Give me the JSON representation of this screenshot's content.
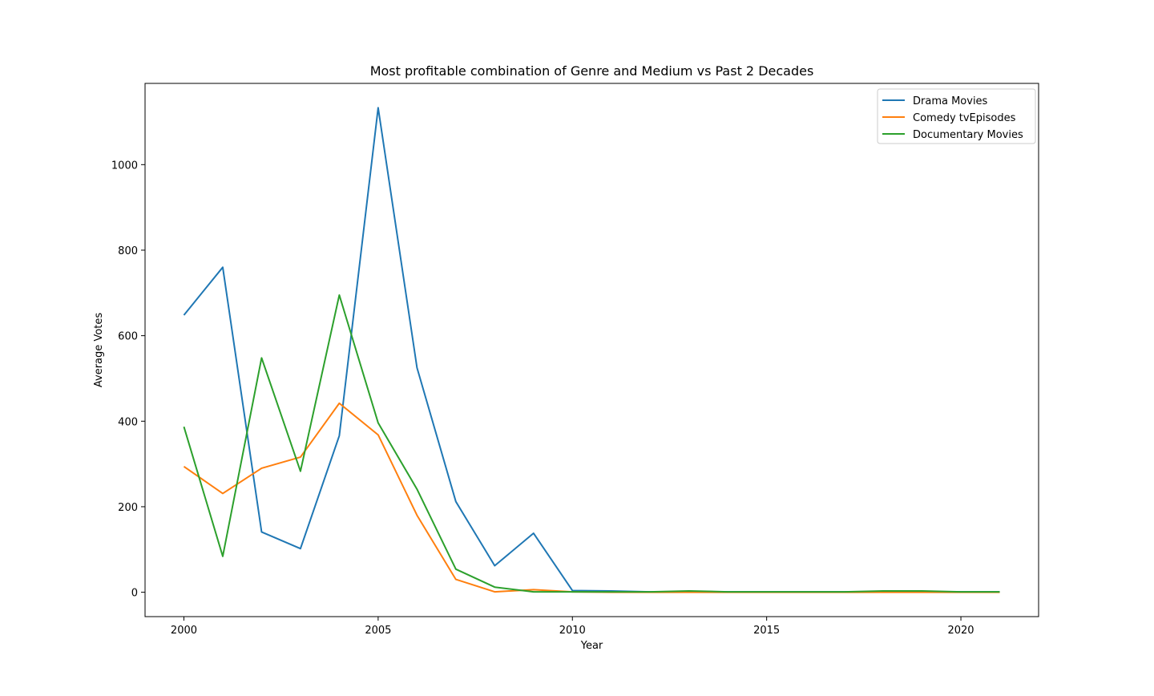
{
  "chart_data": {
    "type": "line",
    "title": "Most profitable combination of Genre and Medium vs Past 2 Decades",
    "xlabel": "Year",
    "ylabel": "Average Votes",
    "xlim": [
      1999,
      2022
    ],
    "ylim": [
      -57,
      1190
    ],
    "xticks": [
      2000,
      2005,
      2010,
      2015,
      2020
    ],
    "yticks": [
      0,
      200,
      400,
      600,
      800,
      1000
    ],
    "grid": false,
    "legend_position": "top-right",
    "x": [
      2000,
      2001,
      2002,
      2003,
      2004,
      2005,
      2006,
      2007,
      2008,
      2009,
      2010,
      2011,
      2012,
      2013,
      2014,
      2015,
      2016,
      2017,
      2018,
      2019,
      2020,
      2021
    ],
    "series": [
      {
        "name": "Drama Movies",
        "color": "#1f77b4",
        "values": [
          648,
          760,
          141,
          102,
          366,
          1133,
          525,
          212,
          62,
          138,
          4,
          3,
          1,
          1,
          1,
          1,
          1,
          1,
          1,
          1,
          1,
          1
        ]
      },
      {
        "name": "Comedy tvEpisodes",
        "color": "#ff7f0e",
        "values": [
          294,
          231,
          290,
          316,
          442,
          368,
          180,
          30,
          1,
          6,
          1,
          0,
          0,
          0,
          0,
          0,
          0,
          0,
          0,
          0,
          0,
          0
        ]
      },
      {
        "name": "Documentary Movies",
        "color": "#2ca02c",
        "values": [
          387,
          84,
          548,
          283,
          695,
          396,
          241,
          54,
          12,
          1,
          1,
          1,
          1,
          3,
          1,
          1,
          1,
          1,
          3,
          3,
          1,
          1
        ]
      }
    ]
  }
}
